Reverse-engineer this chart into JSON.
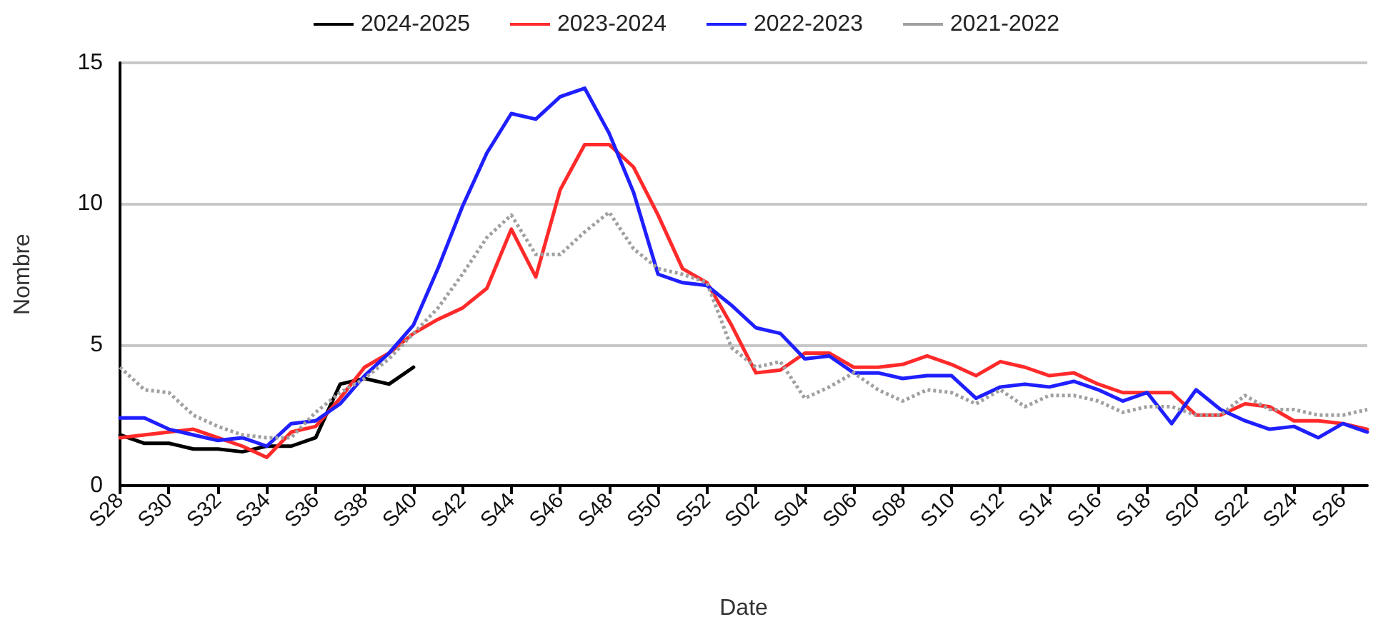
{
  "chart_data": {
    "type": "line",
    "xlabel": "Date",
    "ylabel": "Nombre",
    "categories": [
      "S28",
      null,
      "S30",
      null,
      "S32",
      null,
      "S34",
      null,
      "S36",
      null,
      "S38",
      null,
      "S40",
      null,
      "S42",
      null,
      "S44",
      null,
      "S46",
      null,
      "S48",
      null,
      "S50",
      null,
      "S52",
      null,
      "S02",
      null,
      "S04",
      null,
      "S06",
      null,
      "S08",
      null,
      "S10",
      null,
      "S12",
      null,
      "S14",
      null,
      "S16",
      null,
      "S18",
      null,
      "S20",
      null,
      "S22",
      null,
      "S24",
      null,
      "S26",
      null
    ],
    "series": [
      {
        "name": "2024-2025",
        "color": "#000000",
        "values": [
          1.8,
          1.5,
          1.5,
          1.3,
          1.3,
          1.2,
          1.4,
          1.4,
          1.7,
          3.6,
          3.8,
          3.6,
          4.2,
          null,
          null,
          null,
          null,
          null,
          null,
          null,
          null,
          null,
          null,
          null,
          null,
          null,
          null,
          null,
          null,
          null,
          null,
          null,
          null,
          null,
          null,
          null,
          null,
          null,
          null,
          null,
          null,
          null,
          null,
          null,
          null,
          null,
          null,
          null,
          null,
          null,
          null,
          null
        ]
      },
      {
        "name": "2023-2024",
        "color": "#ff2a2a",
        "values": [
          1.7,
          1.8,
          1.9,
          2.0,
          1.7,
          1.4,
          1.0,
          1.9,
          2.1,
          3.1,
          4.2,
          4.7,
          5.4,
          5.9,
          6.3,
          7.0,
          9.1,
          7.4,
          10.5,
          12.1,
          12.1,
          11.3,
          9.6,
          7.7,
          7.2,
          5.7,
          4.0,
          4.1,
          4.7,
          4.7,
          4.2,
          4.2,
          4.3,
          4.6,
          4.3,
          3.9,
          4.4,
          4.2,
          3.9,
          4.0,
          3.6,
          3.3,
          3.3,
          3.3,
          2.5,
          2.5,
          2.9,
          2.8,
          2.3,
          2.3,
          2.2,
          2.0
        ]
      },
      {
        "name": "2022-2023",
        "color": "#1f1fff",
        "values": [
          2.4,
          2.4,
          2.0,
          1.8,
          1.6,
          1.7,
          1.4,
          2.2,
          2.3,
          2.9,
          3.9,
          4.7,
          5.7,
          7.7,
          9.9,
          11.8,
          13.2,
          13.0,
          13.8,
          14.1,
          12.5,
          10.4,
          7.5,
          7.2,
          7.1,
          6.4,
          5.6,
          5.4,
          4.5,
          4.6,
          4.0,
          4.0,
          3.8,
          3.9,
          3.9,
          3.1,
          3.5,
          3.6,
          3.5,
          3.7,
          3.4,
          3.0,
          3.3,
          2.2,
          3.4,
          2.7,
          2.3,
          2.0,
          2.1,
          1.7,
          2.2,
          1.9
        ]
      },
      {
        "name": "2021-2022",
        "color": "#a0a0a0",
        "line_style": "dotted",
        "values": [
          4.2,
          3.4,
          3.3,
          2.5,
          2.1,
          1.8,
          1.7,
          1.7,
          2.6,
          3.3,
          3.8,
          4.5,
          5.4,
          6.3,
          7.5,
          8.8,
          9.6,
          8.2,
          8.2,
          9.0,
          9.7,
          8.4,
          7.7,
          7.5,
          7.2,
          4.9,
          4.2,
          4.4,
          3.1,
          3.5,
          4.0,
          3.4,
          3.0,
          3.4,
          3.3,
          2.9,
          3.4,
          2.8,
          3.2,
          3.2,
          3.0,
          2.6,
          2.8,
          2.8,
          2.5,
          2.5,
          3.2,
          2.7,
          2.7,
          2.5,
          2.5,
          2.7
        ]
      }
    ],
    "ylim": [
      0,
      15
    ],
    "yticks": [
      0,
      5,
      10,
      15
    ],
    "grid": "y",
    "legend": "top",
    "marker": "none",
    "line_style": "solid"
  }
}
